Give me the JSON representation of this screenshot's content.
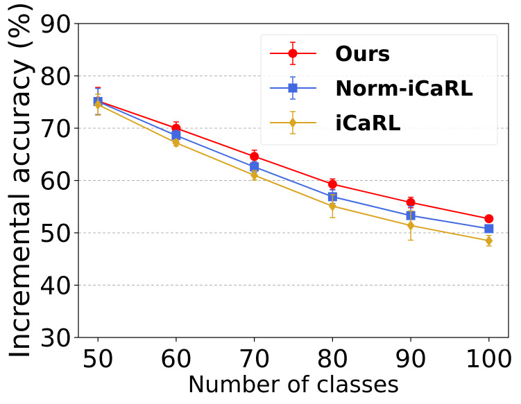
{
  "chart_data": {
    "type": "line",
    "title": "",
    "xlabel": "Number of classes",
    "ylabel": "Incremental accuracy (%)",
    "x": [
      50,
      60,
      70,
      80,
      90,
      100
    ],
    "x_tick_labels": [
      "50",
      "60",
      "70",
      "80",
      "90",
      "100"
    ],
    "y_tick_labels": [
      "30",
      "40",
      "50",
      "60",
      "70",
      "80",
      "90"
    ],
    "ylim": [
      30,
      90
    ],
    "xlim": [
      47.5,
      102.5
    ],
    "grid": "horizontal dashed",
    "legend_position": "top-right",
    "series": [
      {
        "name": "Ours",
        "color": "#ff0000",
        "marker": "circle",
        "values": [
          75.2,
          70.0,
          64.6,
          59.3,
          55.8,
          52.7
        ],
        "errors": [
          2.6,
          1.2,
          1.2,
          1.0,
          1.0,
          0.5
        ]
      },
      {
        "name": "Norm-iCaRL",
        "color": "#4169e1",
        "marker": "square",
        "values": [
          75.1,
          68.6,
          62.6,
          56.9,
          53.3,
          50.8
        ],
        "errors": [
          2.5,
          1.0,
          1.0,
          1.3,
          1.8,
          0.6
        ]
      },
      {
        "name": "iCaRL",
        "color": "#daa520",
        "marker": "diamond",
        "values": [
          74.5,
          67.2,
          61.0,
          55.1,
          51.4,
          48.5
        ],
        "errors": [
          2.0,
          0.6,
          0.9,
          2.2,
          2.8,
          1.0
        ]
      }
    ]
  }
}
